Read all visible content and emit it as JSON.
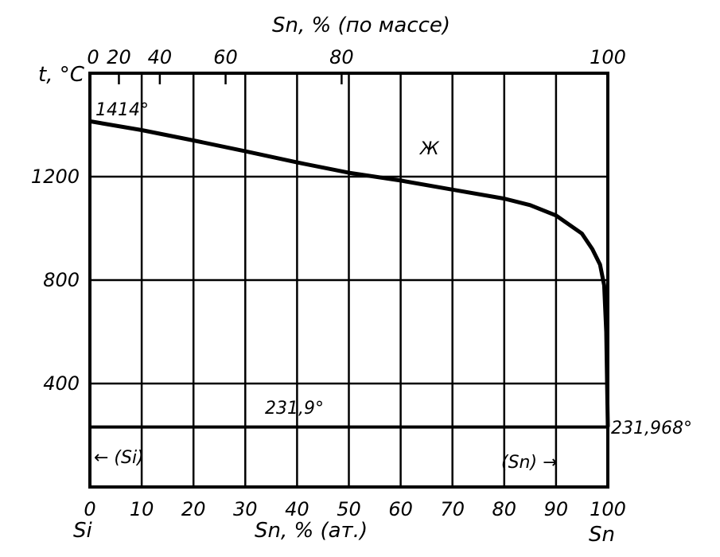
{
  "chart_data": {
    "type": "line",
    "title": "",
    "xlabel": "Sn, % (ат.)",
    "x2label": "Sn, % (по массе)",
    "ylabel": "t, °C",
    "xlim": [
      0,
      100
    ],
    "ylim": [
      0,
      1600
    ],
    "x_ticks": [
      0,
      10,
      20,
      30,
      40,
      50,
      60,
      70,
      80,
      90,
      100
    ],
    "y_ticks": [
      400,
      800,
      1200
    ],
    "x2_ticks": [
      {
        "label": "0",
        "at": 0
      },
      {
        "label": "20",
        "at": 5.6
      },
      {
        "label": "40",
        "at": 13.5
      },
      {
        "label": "60",
        "at": 26.2
      },
      {
        "label": "80",
        "at": 48.6
      },
      {
        "label": "100",
        "at": 100
      }
    ],
    "grid": true,
    "series": [
      {
        "name": "",
        "x": [
          0,
          10,
          20,
          30,
          40,
          50,
          60,
          70,
          80,
          85,
          90,
          95,
          97,
          98.5,
          99.3,
          99.7,
          100
        ],
        "y": [
          1414,
          1380,
          1340,
          1298,
          1255,
          1215,
          1185,
          1150,
          1115,
          1090,
          1050,
          980,
          920,
          860,
          780,
          600,
          231.968
        ]
      }
    ],
    "eutectic_line": {
      "y": 231.9,
      "x": [
        0,
        100
      ]
    },
    "annotations": {
      "si_melt": "1414°",
      "liquid": "Ж",
      "eutectic": "231,9°",
      "sn_melt": "231,968°",
      "si_phase": "← (Si)",
      "sn_phase": "(Sn) →",
      "left_element": "Si",
      "right_element": "Sn"
    }
  }
}
